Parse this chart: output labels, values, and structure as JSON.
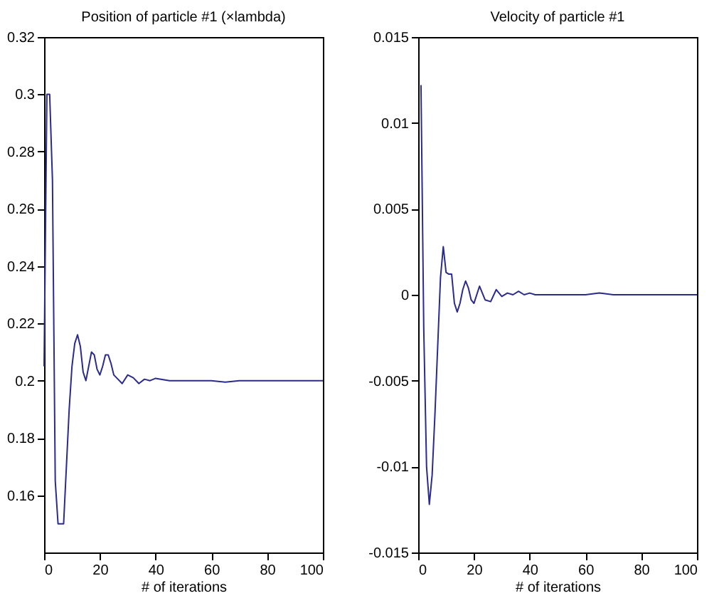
{
  "chart_data": [
    {
      "type": "line",
      "title": "Position of particle #1 (×lambda)",
      "xlabel": "# of iterations",
      "color": "#2b2b8c",
      "x": [
        0,
        1,
        2,
        3,
        4,
        5,
        6,
        7,
        8,
        9,
        10,
        11,
        12,
        13,
        14,
        15,
        16,
        17,
        18,
        19,
        20,
        21,
        22,
        23,
        24,
        25,
        26,
        28,
        30,
        32,
        34,
        36,
        38,
        40,
        45,
        50,
        60,
        65,
        70,
        80,
        90,
        100
      ],
      "values": [
        0.205,
        0.3,
        0.3,
        0.27,
        0.165,
        0.15,
        0.15,
        0.15,
        0.17,
        0.19,
        0.205,
        0.213,
        0.216,
        0.212,
        0.203,
        0.2,
        0.205,
        0.21,
        0.209,
        0.204,
        0.202,
        0.205,
        0.209,
        0.209,
        0.206,
        0.202,
        0.201,
        0.199,
        0.202,
        0.201,
        0.199,
        0.2005,
        0.2,
        0.2008,
        0.2,
        0.2,
        0.2,
        0.1995,
        0.2,
        0.2,
        0.2,
        0.2
      ],
      "xlim": [
        0,
        100
      ],
      "xticks": [
        0,
        20,
        40,
        60,
        80,
        100
      ],
      "ylim": [
        0.14,
        0.32
      ],
      "yticks": [
        0.16,
        0.18,
        0.2,
        0.22,
        0.24,
        0.26,
        0.28,
        0.3,
        0.32
      ],
      "grid": false
    },
    {
      "type": "line",
      "title": "Velocity of particle #1",
      "xlabel": "# of iterations",
      "color": "#2b2b8c",
      "x": [
        1,
        2,
        3,
        4,
        5,
        6,
        7,
        8,
        9,
        10,
        11,
        12,
        13,
        14,
        15,
        16,
        17,
        18,
        19,
        20,
        22,
        24,
        26,
        28,
        30,
        32,
        34,
        36,
        38,
        40,
        42,
        50,
        60,
        65,
        70,
        80,
        90,
        100
      ],
      "values": [
        0.0122,
        -0.002,
        -0.01,
        -0.0122,
        -0.0105,
        -0.007,
        -0.003,
        0.001,
        0.0028,
        0.0013,
        0.0012,
        0.0012,
        -0.0005,
        -0.001,
        -0.0005,
        0.0003,
        0.0008,
        0.0004,
        -0.0003,
        -0.0005,
        0.0005,
        -0.0003,
        -0.0004,
        0.0003,
        -0.0001,
        0.0001,
        0,
        0.0002,
        0,
        0.0001,
        0,
        0,
        0,
        0.0001,
        0,
        0,
        0,
        0
      ],
      "xlim": [
        0,
        100
      ],
      "xticks": [
        0,
        20,
        40,
        60,
        80,
        100
      ],
      "ylim": [
        -0.015,
        0.015
      ],
      "yticks": [
        -0.015,
        -0.01,
        -0.005,
        0,
        0.005,
        0.01,
        0.015
      ],
      "grid": false
    }
  ]
}
